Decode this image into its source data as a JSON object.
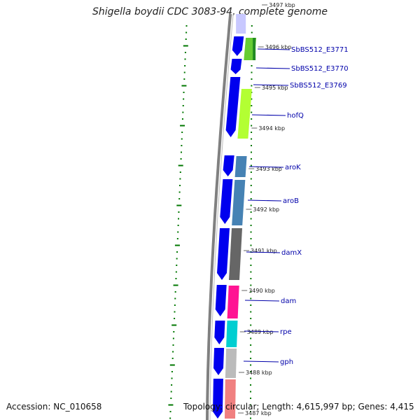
{
  "title": "Shigella boydii CDC 3083-94, complete genome",
  "footer": {
    "accession": "Accession: NC_010658",
    "topology": "Topology: circular; Length: 4,615,997 bp; Genes: 4,415"
  },
  "colors": {
    "forward_strand": "#0000ee",
    "backbone": "#808080",
    "gc_dots": "#007700",
    "label": "#0000aa"
  },
  "ticks": [
    {
      "label": "3497 kbp",
      "kbp": 3497
    },
    {
      "label": "3496 kbp",
      "kbp": 3496
    },
    {
      "label": "3495 kbp",
      "kbp": 3495
    },
    {
      "label": "3494 kbp",
      "kbp": 3494
    },
    {
      "label": "3493 kbp",
      "kbp": 3493
    },
    {
      "label": "3492 kbp",
      "kbp": 3492
    },
    {
      "label": "3491 kbp",
      "kbp": 3491
    },
    {
      "label": "3490 kbp",
      "kbp": 3490
    },
    {
      "label": "3489 kbp",
      "kbp": 3489
    },
    {
      "label": "3488 kbp",
      "kbp": 3488
    },
    {
      "label": "3487 kbp",
      "kbp": 3487
    }
  ],
  "genes": [
    {
      "name": "SbBS512_E3771",
      "color": "#66cc33"
    },
    {
      "name": "SbBS512_E3770",
      "color": ""
    },
    {
      "name": "SbBS512_E3769",
      "color": "#b3ff33"
    },
    {
      "name": "hofQ",
      "color": "#b3ff33"
    },
    {
      "name": "aroK",
      "color": "#4682b4"
    },
    {
      "name": "aroB",
      "color": "#4682b4"
    },
    {
      "name": "damX",
      "color": "#666666"
    },
    {
      "name": "dam",
      "color": "#ff1493"
    },
    {
      "name": "rpe",
      "color": "#00ced1"
    },
    {
      "name": "gph",
      "color": "#bbbbbb"
    }
  ]
}
